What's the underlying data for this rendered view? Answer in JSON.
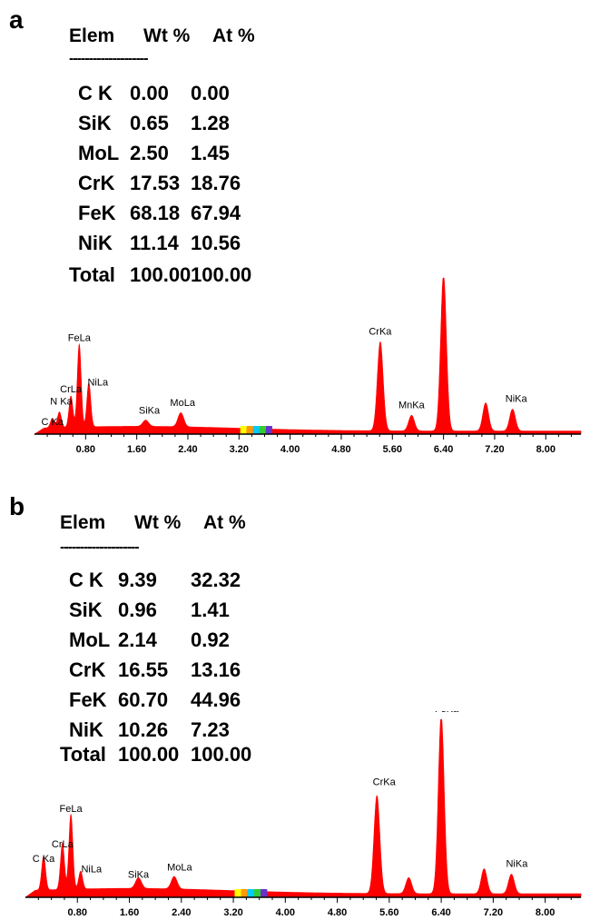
{
  "chart_data": [
    {
      "type": "area",
      "panel_label": "a",
      "table": {
        "headers": [
          "Elem",
          "Wt %",
          "At %"
        ],
        "separator": "--------------------",
        "rows": [
          {
            "elem": "C K",
            "wt": "0.00",
            "at": "0.00"
          },
          {
            "elem": "SiK",
            "wt": "0.65",
            "at": "1.28"
          },
          {
            "elem": "MoL",
            "wt": "2.50",
            "at": "1.45"
          },
          {
            "elem": "CrK",
            "wt": "17.53",
            "at": "18.76"
          },
          {
            "elem": "FeK",
            "wt": "68.18",
            "at": "67.94"
          },
          {
            "elem": "NiK",
            "wt": "11.14",
            "at": "10.56"
          },
          {
            "elem": "Total",
            "wt": "100.00",
            "at": "100.00"
          }
        ]
      },
      "xlim": [
        0.0,
        8.55
      ],
      "ylim": [
        0,
        1.0
      ],
      "xticks": [
        "0.80",
        "1.60",
        "2.40",
        "3.20",
        "4.00",
        "4.80",
        "5.60",
        "6.40",
        "7.20",
        "8.00"
      ],
      "xtick_values": [
        0.8,
        1.6,
        2.4,
        3.2,
        4.0,
        4.8,
        5.6,
        6.4,
        7.2,
        8.0
      ],
      "baseline": 0.02,
      "background_slope": 0.03,
      "peaks": [
        {
          "label": "C Ka",
          "x": 0.28,
          "height": 0.06
        },
        {
          "label": "N Ka",
          "x": 0.39,
          "height": 0.1
        },
        {
          "label": "CrLa",
          "x": 0.57,
          "height": 0.2
        },
        {
          "label": "FeLa",
          "x": 0.7,
          "height": 0.53
        },
        {
          "label": "NiLa",
          "x": 0.85,
          "height": 0.28
        },
        {
          "label": "SiKa",
          "x": 1.74,
          "height": 0.04
        },
        {
          "label": "MoLa",
          "x": 2.29,
          "height": 0.09
        },
        {
          "label": "CrKa",
          "x": 5.41,
          "height": 0.57
        },
        {
          "label": "MnKa",
          "x": 5.9,
          "height": 0.1
        },
        {
          "label": "",
          "x": 6.4,
          "height": 1.0
        },
        {
          "label": "",
          "x": 7.06,
          "height": 0.18
        },
        {
          "label": "NiKa",
          "x": 7.48,
          "height": 0.14
        }
      ]
    },
    {
      "type": "area",
      "panel_label": "b",
      "table": {
        "headers": [
          "Elem",
          "Wt %",
          "At %"
        ],
        "separator": "--------------------",
        "rows": [
          {
            "elem": "C K",
            "wt": "9.39",
            "at": "32.32"
          },
          {
            "elem": "SiK",
            "wt": "0.96",
            "at": "1.41"
          },
          {
            "elem": "MoL",
            "wt": "2.14",
            "at": "0.92"
          },
          {
            "elem": "CrK",
            "wt": "16.55",
            "at": "13.16"
          },
          {
            "elem": "FeK",
            "wt": "60.70",
            "at": "44.96"
          },
          {
            "elem": "NiK",
            "wt": "10.26",
            "at": "7.23"
          },
          {
            "elem": "Total",
            "wt": "100.00",
            "at": "100.00"
          }
        ]
      },
      "xlim": [
        0.0,
        8.55
      ],
      "ylim": [
        0,
        1.0
      ],
      "xticks": [
        "0.80",
        "1.60",
        "2.40",
        "3.20",
        "4.00",
        "4.80",
        "5.60",
        "6.40",
        "7.20",
        "8.00"
      ],
      "xtick_values": [
        0.8,
        1.6,
        2.4,
        3.2,
        4.0,
        4.8,
        5.6,
        6.4,
        7.2,
        8.0
      ],
      "baseline": 0.02,
      "background_slope": 0.03,
      "peaks": [
        {
          "label": "C Ka",
          "x": 0.28,
          "height": 0.19
        },
        {
          "label": "CrLa",
          "x": 0.57,
          "height": 0.26
        },
        {
          "label": "FeLa",
          "x": 0.7,
          "height": 0.42
        },
        {
          "label": "NiLa",
          "x": 0.85,
          "height": 0.1
        },
        {
          "label": "SiKa",
          "x": 1.74,
          "height": 0.06
        },
        {
          "label": "MoLa",
          "x": 2.29,
          "height": 0.07
        },
        {
          "label": "CrKa",
          "x": 5.41,
          "height": 0.55
        },
        {
          "label": "",
          "x": 5.9,
          "height": 0.09
        },
        {
          "label": "FeKa",
          "x": 6.4,
          "height": 1.0
        },
        {
          "label": "",
          "x": 7.06,
          "height": 0.14
        },
        {
          "label": "NiKa",
          "x": 7.48,
          "height": 0.11
        }
      ]
    }
  ],
  "colors": {
    "spectrum_fill": "#ff0000",
    "axis": "#000000",
    "marker_bar": [
      "#ffff00",
      "#ff9900",
      "#00ccff",
      "#33cc33",
      "#6633cc"
    ]
  }
}
